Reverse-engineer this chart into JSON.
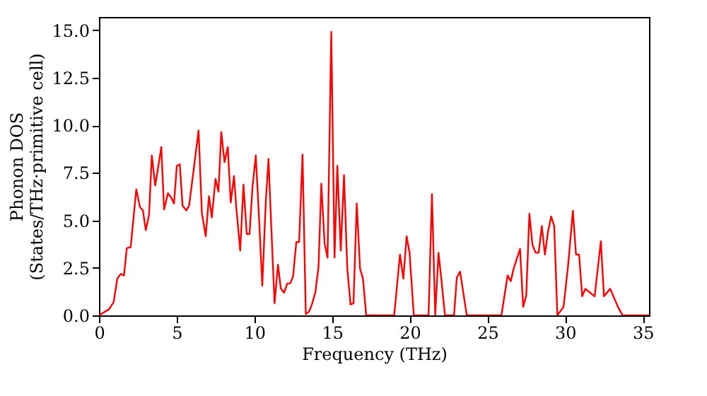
{
  "chart_data": {
    "type": "line",
    "xlabel": "Frequency (THz)",
    "ylabel": "Phonon DOS\n(States/THz·primitive cell)",
    "x": [
      0,
      0.64,
      0.94,
      1.18,
      1.4,
      1.61,
      1.79,
      2.04,
      2.4,
      2.64,
      2.83,
      3.01,
      3.22,
      3.4,
      3.62,
      3.8,
      4.01,
      4.19,
      4.44,
      4.65,
      4.83,
      5.01,
      5.2,
      5.38,
      5.62,
      5.8,
      6.05,
      6.41,
      6.62,
      6.87,
      7.08,
      7.26,
      7.5,
      7.69,
      7.87,
      8.08,
      8.29,
      8.48,
      8.69,
      8.84,
      9.09,
      9.3,
      9.51,
      9.69,
      9.88,
      10.09,
      10.3,
      10.51,
      10.73,
      10.91,
      11.09,
      11.3,
      11.52,
      11.7,
      11.91,
      12.12,
      12.31,
      12.49,
      12.7,
      12.88,
      13.1,
      13.31,
      13.52,
      13.7,
      13.92,
      14.13,
      14.31,
      14.52,
      14.71,
      14.95,
      15.16,
      15.34,
      15.56,
      15.77,
      15.98,
      16.19,
      16.38,
      16.59,
      16.8,
      16.99,
      17.2,
      19.0,
      19.37,
      19.59,
      19.8,
      19.99,
      20.26,
      21.21,
      21.43,
      21.64,
      21.85,
      22.03,
      22.27,
      22.85,
      23.03,
      23.24,
      23.67,
      25.9,
      26.3,
      26.5,
      26.7,
      27.1,
      27.3,
      27.5,
      27.7,
      27.9,
      28.1,
      28.3,
      28.5,
      28.7,
      28.9,
      29.1,
      29.3,
      29.5,
      29.9,
      30.2,
      30.5,
      30.7,
      30.9,
      31.1,
      31.3,
      31.6,
      31.9,
      32.3,
      32.5,
      32.9,
      33.4,
      33.7,
      35.4
    ],
    "series": [
      {
        "color": "#ff0000",
        "values": [
          0,
          0.32,
          0.69,
          1.93,
          2.18,
          2.1,
          3.54,
          3.59,
          6.63,
          5.69,
          5.52,
          4.48,
          5.27,
          8.41,
          6.83,
          7.75,
          8.86,
          5.57,
          6.43,
          6.19,
          5.89,
          7.87,
          7.95,
          5.77,
          5.52,
          5.77,
          7.38,
          9.72,
          5.4,
          4.16,
          6.27,
          5.15,
          7.18,
          6.51,
          9.65,
          8.06,
          8.86,
          5.94,
          7.33,
          5.64,
          3.41,
          6.88,
          4.28,
          4.28,
          6.75,
          8.41,
          5.15,
          1.56,
          5.89,
          8.23,
          4.65,
          0.64,
          2.67,
          1.43,
          1.19,
          1.68,
          1.68,
          2.05,
          3.86,
          3.86,
          8.46,
          0.07,
          0.2,
          0.57,
          1.19,
          2.55,
          6.93,
          3.79,
          3.04,
          14.92,
          3.04,
          7.87,
          3.41,
          7.38,
          2.47,
          0.57,
          0.64,
          5.89,
          2.47,
          1.93,
          0,
          0,
          3.2,
          1.93,
          4.16,
          3.29,
          0,
          0,
          6.38,
          0,
          3.29,
          1.93,
          0,
          0,
          1.98,
          2.3,
          0,
          0,
          2.1,
          1.8,
          2.5,
          3.5,
          0.45,
          1.06,
          5.35,
          3.7,
          3.3,
          3.3,
          4.7,
          3.2,
          4.4,
          5.2,
          4.7,
          0,
          0.45,
          2.7,
          5.5,
          3.2,
          3.2,
          1.0,
          1.4,
          1.2,
          1.0,
          3.9,
          1.0,
          1.4,
          0.45,
          0,
          0
        ]
      }
    ],
    "xlim": [
      0,
      35.4
    ],
    "ylim": [
      0,
      15.7
    ],
    "xticks": [
      0,
      5,
      10,
      15,
      20,
      25,
      30,
      35
    ],
    "yticks": [
      {
        "value": 0,
        "label": "0.0"
      },
      {
        "value": 2.5,
        "label": "2.5"
      },
      {
        "value": 5,
        "label": "5.0"
      },
      {
        "value": 7.5,
        "label": "7.5"
      },
      {
        "value": 10,
        "label": "10.0"
      },
      {
        "value": 12.5,
        "label": "12.5"
      },
      {
        "value": 15,
        "label": "15.0"
      }
    ],
    "grid": false,
    "marker": "none",
    "line_style": "solid"
  }
}
